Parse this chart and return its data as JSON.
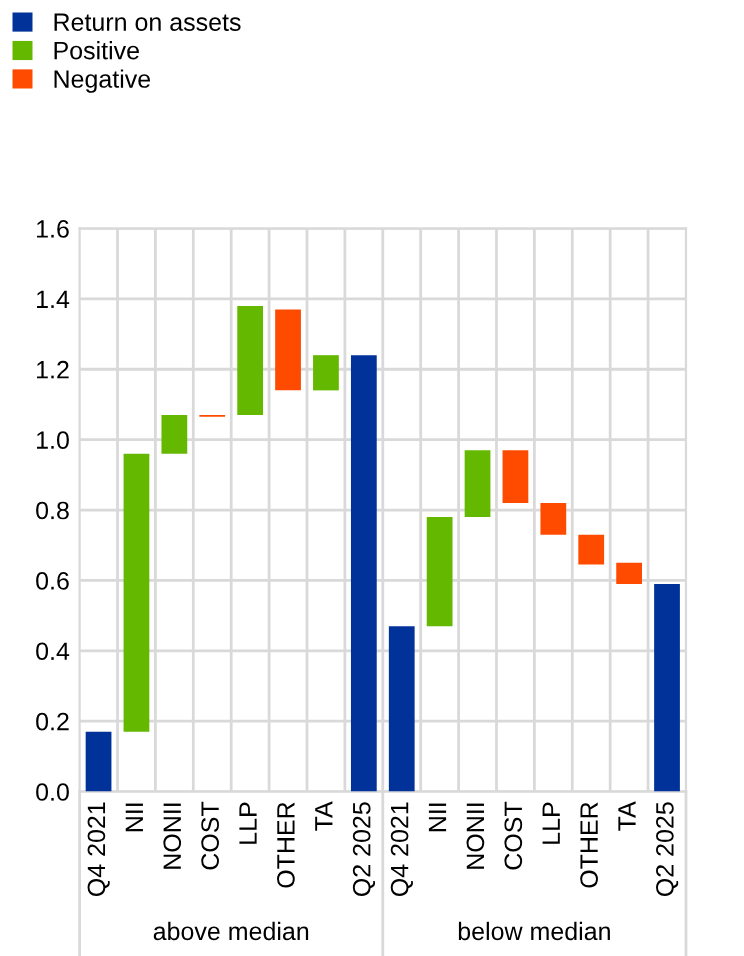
{
  "chart_data": {
    "type": "bar",
    "categories": [
      "Q4 2021",
      "NII",
      "NONII",
      "COST",
      "LLP",
      "OTHER",
      "TA",
      "Q2 2025",
      "Q4 2021",
      "NII",
      "NONII",
      "COST",
      "LLP",
      "OTHER",
      "TA",
      "Q2 2025"
    ],
    "series": [
      {
        "name": "Return on assets",
        "color": "#003299",
        "values": [
          0.17,
          null,
          null,
          null,
          null,
          null,
          null,
          1.24,
          0.47,
          null,
          null,
          null,
          null,
          null,
          null,
          0.59
        ]
      },
      {
        "name": "Positive",
        "color": "#65b800",
        "values": [
          null,
          0.79,
          0.11,
          null,
          0.31,
          null,
          0.1,
          null,
          null,
          0.31,
          0.19,
          null,
          null,
          null,
          null,
          null
        ],
        "base": [
          null,
          0.17,
          0.96,
          null,
          1.07,
          null,
          1.14,
          null,
          null,
          0.47,
          0.78,
          null,
          null,
          null,
          null,
          null
        ]
      },
      {
        "name": "Negative",
        "color": "#ff4b00",
        "values": [
          null,
          null,
          null,
          -0.005,
          null,
          -0.23,
          null,
          null,
          null,
          null,
          null,
          -0.15,
          -0.09,
          -0.085,
          -0.06,
          null
        ],
        "base": [
          null,
          null,
          null,
          1.07,
          null,
          1.37,
          null,
          null,
          null,
          null,
          null,
          0.97,
          0.82,
          0.73,
          0.65,
          null
        ]
      }
    ],
    "ylim": [
      0,
      1.6
    ],
    "yticks": [
      {
        "value": 0,
        "label": "0.0"
      },
      {
        "value": 0.2,
        "label": "0.2"
      },
      {
        "value": 0.4,
        "label": "0.4"
      },
      {
        "value": 0.6,
        "label": "0.6"
      },
      {
        "value": 0.8,
        "label": "0.8"
      },
      {
        "value": 1,
        "label": "1.0"
      },
      {
        "value": 1.2,
        "label": "1.2"
      },
      {
        "value": 1.4,
        "label": "1.4"
      },
      {
        "value": 1.6,
        "label": "1.6"
      }
    ],
    "grid": true,
    "legend": "top left",
    "annotations": [
      "above median",
      "below median"
    ]
  }
}
